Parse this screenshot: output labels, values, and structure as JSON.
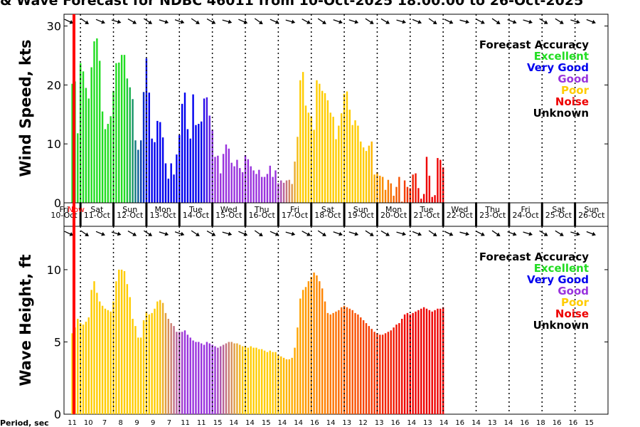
{
  "title": "& Wave Forecast for NDBC 46011 from 10-Oct-2025 18:00:00 to 26-Oct-2025",
  "now_label": "Now",
  "period_title": "Period, sec",
  "days": [
    {
      "day": "Fri",
      "date": "10-Oct"
    },
    {
      "day": "Sat",
      "date": "11-Oct"
    },
    {
      "day": "Sun",
      "date": "12-Oct"
    },
    {
      "day": "Mon",
      "date": "13-Oct"
    },
    {
      "day": "Tue",
      "date": "14-Oct"
    },
    {
      "day": "Wed",
      "date": "15-Oct"
    },
    {
      "day": "Thu",
      "date": "16-Oct"
    },
    {
      "day": "Fri",
      "date": "17-Oct"
    },
    {
      "day": "Sat",
      "date": "18-Oct"
    },
    {
      "day": "Sun",
      "date": "19-Oct"
    },
    {
      "day": "Mon",
      "date": "20-Oct"
    },
    {
      "day": "Tue",
      "date": "21-Oct"
    },
    {
      "day": "Wed",
      "date": "22-Oct"
    },
    {
      "day": "Thu",
      "date": "23-Oct"
    },
    {
      "day": "Fri",
      "date": "24-Oct"
    },
    {
      "day": "Sat",
      "date": "25-Oct"
    },
    {
      "day": "Sun",
      "date": "26-Oct"
    }
  ],
  "legend": {
    "title": "Forecast Accuracy",
    "items": [
      {
        "label": "Excellent",
        "color": "#22dd22"
      },
      {
        "label": "Very Good",
        "color": "#0000ee"
      },
      {
        "label": "Good",
        "color": "#9933dd"
      },
      {
        "label": "Poor",
        "color": "#ffcc00"
      },
      {
        "label": "Noise",
        "color": "#ee0000"
      },
      {
        "label": "Unknown",
        "color": "#000000"
      }
    ]
  },
  "periods": [
    "11",
    "10",
    "7",
    "8",
    "9",
    "9",
    "7",
    "11",
    "11",
    "15",
    "14",
    "14",
    "15",
    "14",
    "14",
    "16",
    "14",
    "13",
    "12",
    "13",
    "16",
    "14",
    "13",
    "14",
    "16",
    "14",
    "13",
    "14",
    "16",
    "18",
    "16",
    "16",
    "15"
  ],
  "chart_data": [
    {
      "type": "bar",
      "ylabel": "Wind Speed, kts",
      "ylim": [
        0,
        32
      ],
      "yticks": [
        0,
        10,
        20,
        30
      ],
      "x_unit": "days since 10-Oct 18:00",
      "bar_interval_hours": 2,
      "grid": false,
      "legend_position": "top-right",
      "values": [
        20.2,
        20.6,
        11.8,
        23.7,
        22.3,
        19.5,
        17.7,
        23.0,
        27.4,
        27.9,
        24.1,
        15.5,
        12.5,
        13.4,
        14.7,
        19.0,
        23.7,
        23.8,
        25.1,
        25.1,
        21.1,
        19.6,
        17.6,
        10.6,
        9.0,
        10.6,
        18.8,
        24.5,
        18.7,
        10.9,
        10.3,
        13.9,
        13.7,
        11.1,
        6.7,
        4.1,
        6.7,
        4.8,
        8.2,
        11.5,
        16.8,
        18.7,
        12.5,
        10.9,
        18.4,
        13.2,
        13.4,
        13.8,
        17.7,
        17.9,
        14.8,
        12.4,
        7.8,
        8.0,
        5.0,
        8.3,
        9.9,
        9.2,
        6.8,
        6.2,
        7.3,
        5.9,
        5.2,
        8.1,
        7.4,
        6.2,
        5.5,
        4.9,
        5.6,
        4.4,
        4.4,
        4.9,
        6.3,
        4.4,
        5.5,
        3.3,
        3.8,
        3.4,
        3.8,
        3.9,
        3.2,
        7.0,
        11.2,
        20.8,
        22.2,
        16.5,
        15.3,
        14.7,
        12.4,
        20.8,
        20.2,
        19.0,
        18.6,
        17.4,
        15.3,
        14.6,
        10.8,
        13.1,
        15.2,
        18.5,
        18.9,
        15.8,
        13.2,
        14.0,
        13.1,
        10.4,
        9.4,
        8.8,
        9.7,
        10.4,
        4.8,
        5.2,
        4.6,
        4.4,
        2.2,
        3.9,
        3.3,
        1.2,
        2.7,
        4.4,
        0.2,
        3.8,
        2.7,
        2.5,
        4.8,
        5.0,
        2.5,
        0.7,
        1.5,
        7.8,
        4.6,
        1.0,
        1.3,
        7.6,
        7.3,
        6.0
      ],
      "accuracy": [
        "Excellent",
        "Very Good",
        "Good",
        "Poor",
        "Noise"
      ]
    },
    {
      "type": "bar",
      "ylabel": "Wave Height, ft",
      "ylim": [
        0,
        13
      ],
      "yticks": [
        0,
        5,
        10
      ],
      "x_unit": "days since 10-Oct 18:00",
      "bar_interval_hours": 2,
      "grid": false,
      "legend_position": "top-right",
      "values": [
        5.6,
        6.0,
        6.6,
        6.3,
        6.2,
        6.4,
        6.7,
        8.6,
        9.2,
        8.4,
        7.8,
        7.5,
        7.3,
        7.2,
        7.1,
        7.8,
        9.2,
        10.0,
        10.0,
        9.9,
        9.0,
        8.1,
        6.6,
        6.1,
        5.3,
        5.3,
        6.5,
        7.1,
        6.9,
        7.0,
        7.3,
        7.8,
        7.9,
        7.7,
        7.0,
        6.6,
        6.3,
        6.1,
        5.7,
        5.7,
        5.7,
        5.8,
        5.5,
        5.3,
        5.1,
        5.0,
        5.0,
        4.9,
        4.8,
        5.0,
        4.9,
        4.8,
        4.7,
        4.6,
        4.7,
        4.8,
        4.9,
        5.0,
        5.0,
        4.9,
        4.9,
        4.8,
        4.7,
        4.7,
        4.6,
        4.7,
        4.6,
        4.6,
        4.5,
        4.5,
        4.4,
        4.3,
        4.4,
        4.3,
        4.3,
        4.1,
        4.0,
        3.9,
        3.8,
        3.8,
        3.9,
        4.6,
        6.0,
        8.0,
        8.6,
        8.8,
        9.2,
        9.5,
        9.8,
        9.6,
        9.2,
        8.7,
        7.8,
        7.0,
        6.9,
        7.0,
        7.1,
        7.2,
        7.4,
        7.5,
        7.4,
        7.3,
        7.2,
        7.0,
        6.9,
        6.7,
        6.5,
        6.3,
        6.1,
        5.9,
        5.7,
        5.6,
        5.5,
        5.5,
        5.6,
        5.7,
        5.8,
        6.0,
        6.2,
        6.3,
        6.6,
        6.9,
        7.0,
        6.9,
        7.0,
        7.1,
        7.2,
        7.3,
        7.4,
        7.3,
        7.2,
        7.1,
        7.2,
        7.3,
        7.3,
        7.4
      ]
    }
  ]
}
